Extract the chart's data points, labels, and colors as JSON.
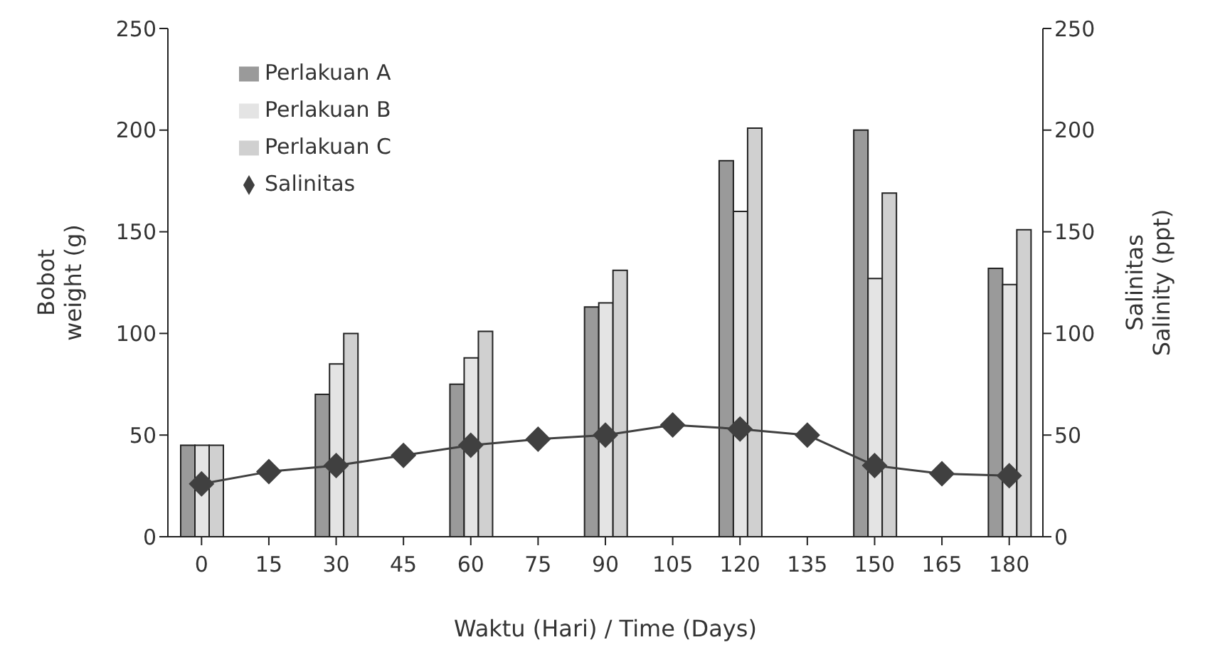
{
  "chart_data": {
    "type": "bar",
    "xlabel": "Waktu (Hari) / Time (Days)",
    "ylabel": "Bobot\nweight (g)",
    "y2label": "Salinitas\nSalinity (ppt)",
    "categories": [
      "0",
      "15",
      "30",
      "45",
      "60",
      "75",
      "90",
      "105",
      "120",
      "135",
      "150",
      "165",
      "180"
    ],
    "series": [
      {
        "name": "Perlakuan A",
        "color": "#9a9a9a",
        "values": [
          45,
          null,
          70,
          null,
          75,
          null,
          113,
          null,
          185,
          null,
          200,
          null,
          132
        ]
      },
      {
        "name": "Perlakuan B",
        "color": "#e4e4e4",
        "values": [
          45,
          null,
          85,
          null,
          88,
          null,
          115,
          null,
          160,
          null,
          127,
          null,
          124
        ]
      },
      {
        "name": "Perlakuan C",
        "color": "#d0d0d0",
        "values": [
          45,
          null,
          100,
          null,
          101,
          null,
          131,
          null,
          201,
          null,
          169,
          null,
          151
        ]
      },
      {
        "name": "Salinitas",
        "type": "line",
        "axis": "y2",
        "color": "#404040",
        "values": [
          26,
          32,
          35,
          40,
          45,
          48,
          50,
          55,
          53,
          50,
          35,
          31,
          30
        ]
      }
    ],
    "ylim": [
      0,
      250
    ],
    "yticks": [
      0,
      50,
      100,
      150,
      200,
      250
    ],
    "y2lim": [
      0,
      250
    ],
    "y2ticks": [
      0,
      50,
      100,
      150,
      200,
      250
    ],
    "grid": false,
    "legend": "top left",
    "marker": "diamond",
    "line_style": "solid"
  }
}
